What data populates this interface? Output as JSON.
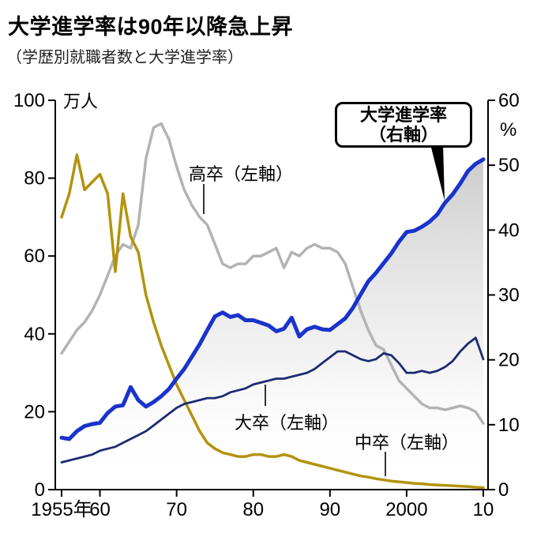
{
  "title": "大学進学率は90年以降急上昇",
  "subtitle": "（学歴別就職者数と大学進学率）",
  "annotations": {
    "kousotsu": "高卒（左軸）",
    "daisotsu": "大卒（左軸）",
    "chuusotsu": "中卒（左軸）",
    "callout_line1": "大学進学率",
    "callout_line2": "（右軸）"
  },
  "chart_data": {
    "type": "line",
    "x_start": 1955,
    "x_end": 2010,
    "left_axis": {
      "unit": "万人",
      "range": [
        0,
        100
      ],
      "ticks": [
        0,
        20,
        40,
        60,
        80,
        100
      ]
    },
    "right_axis": {
      "unit": "%",
      "range": [
        0,
        60
      ],
      "ticks": [
        0,
        10,
        20,
        30,
        40,
        50,
        60
      ]
    },
    "x_ticks": [
      {
        "year": 1955,
        "label": "1955年"
      },
      {
        "year": 1960,
        "label": "60"
      },
      {
        "year": 1970,
        "label": "70"
      },
      {
        "year": 1980,
        "label": "80"
      },
      {
        "year": 1990,
        "label": "90"
      },
      {
        "year": 2000,
        "label": "2000"
      },
      {
        "year": 2010,
        "label": "10"
      }
    ],
    "series": [
      {
        "id": "kousotsu",
        "name": "高卒（左軸）",
        "axis": "left",
        "color": "#b3b3b3",
        "width": 3.5,
        "values": [
          35,
          38,
          41,
          43,
          46,
          50,
          55,
          60,
          63,
          62,
          68,
          85,
          93,
          94,
          90,
          83,
          77,
          73,
          70,
          68,
          63,
          58,
          57,
          58,
          58,
          60,
          60,
          61,
          62,
          57,
          61,
          60,
          62,
          63,
          62,
          62,
          61,
          58,
          52,
          46,
          41,
          37,
          36,
          32,
          28,
          26,
          24,
          22,
          21,
          21,
          20.5,
          21,
          21.5,
          21,
          20,
          17
        ]
      },
      {
        "id": "chuusotsu",
        "name": "中卒（左軸）",
        "axis": "left",
        "color": "#b3930e",
        "width": 3.5,
        "values": [
          70,
          76,
          86,
          77,
          79,
          81,
          76,
          56,
          76,
          65,
          61,
          50,
          43,
          37,
          32,
          27,
          23,
          19,
          15,
          12,
          10.5,
          9.5,
          9,
          8.5,
          8.5,
          9,
          9,
          8.5,
          8.5,
          9,
          8.5,
          7.5,
          7,
          6.5,
          6,
          5.5,
          5,
          4.5,
          4,
          3.5,
          3.2,
          2.8,
          2.5,
          2.2,
          2,
          1.8,
          1.6,
          1.5,
          1.3,
          1.2,
          1.1,
          1,
          0.9,
          0.8,
          0.6,
          0.5
        ]
      },
      {
        "id": "daisotsu",
        "name": "大卒（左軸）",
        "axis": "left",
        "color": "#1e2a72",
        "width": 2.8,
        "values": [
          7,
          7.5,
          8,
          8.5,
          9,
          10,
          10.5,
          11,
          12,
          13,
          14,
          15,
          16.5,
          18,
          19.5,
          21,
          22,
          22.5,
          23,
          23.5,
          23.5,
          24,
          25,
          25.5,
          26,
          27,
          27.5,
          28,
          28.5,
          28.5,
          29,
          29.5,
          30,
          31,
          32.5,
          34,
          35.5,
          35.5,
          34.5,
          33.5,
          33,
          33.5,
          35,
          34.5,
          32.5,
          30,
          30,
          30.5,
          30,
          30.5,
          31.5,
          33,
          35.5,
          37.5,
          39,
          33.5
        ]
      },
      {
        "id": "shingakuritsu",
        "name": "大学進学率（右軸）",
        "axis": "right",
        "color": "#1933cc",
        "width": 5,
        "area": true,
        "values": [
          8,
          7.8,
          9,
          9.8,
          10.1,
          10.3,
          11.8,
          12.8,
          13,
          15.8,
          13.8,
          12.8,
          13.5,
          14.4,
          15.5,
          17.1,
          18.6,
          20.5,
          22.4,
          24.6,
          26.7,
          27.3,
          26.6,
          26.9,
          26.1,
          26.1,
          25.7,
          25.3,
          24.4,
          24.8,
          26.5,
          23.6,
          24.7,
          25.1,
          24.7,
          24.6,
          25.5,
          26.4,
          28,
          30.1,
          32.1,
          33.4,
          34.9,
          36.4,
          38.2,
          39.7,
          39.9,
          40.5,
          41.3,
          42.4,
          44.2,
          45.5,
          47.2,
          49.1,
          50.2,
          50.9
        ]
      }
    ]
  }
}
